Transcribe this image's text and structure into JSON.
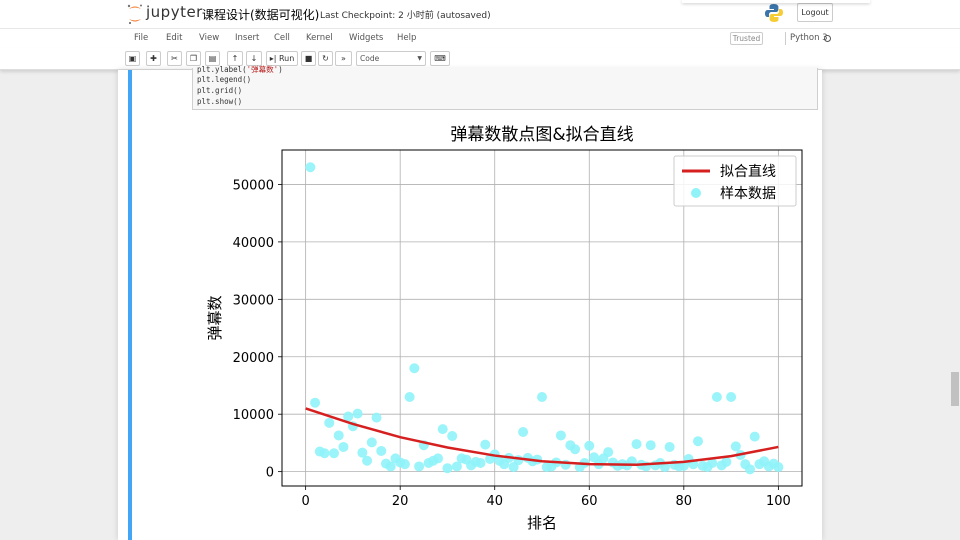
{
  "header": {
    "logo_text": "jupyter",
    "notebook_title": "课程设计(数据可视化)",
    "checkpoint": "Last Checkpoint: 2 小时前   (autosaved)",
    "logout_label": "Logout"
  },
  "menubar": {
    "items": [
      "File",
      "Edit",
      "View",
      "Insert",
      "Cell",
      "Kernel",
      "Widgets",
      "Help"
    ],
    "trusted_label": "Trusted",
    "kernel_name": "Python 3"
  },
  "toolbar": {
    "run_label": "Run",
    "cell_type": "Code"
  },
  "code": {
    "line1_prefix": "plt.ylabel(",
    "line1_str": "'弹幕数'",
    "line1_suffix": ")",
    "line2": "plt.legend()",
    "line3": "plt.grid()",
    "line4": "plt.show()"
  },
  "chart_data": {
    "type": "scatter",
    "title": "弹幕数散点图&拟合直线",
    "xlabel": "排名",
    "ylabel": "弹幕数",
    "xlim": [
      -5,
      105
    ],
    "ylim": [
      -2500,
      56000
    ],
    "xticks": [
      0,
      20,
      40,
      60,
      80,
      100
    ],
    "yticks": [
      0,
      10000,
      20000,
      30000,
      40000,
      50000
    ],
    "grid": true,
    "legend_position": "top-right",
    "series": [
      {
        "name": "拟合直线",
        "kind": "line",
        "color": "#d62020",
        "x": [
          0,
          10,
          20,
          30,
          40,
          50,
          60,
          70,
          80,
          90,
          100
        ],
        "y": [
          11000,
          8300,
          6000,
          4200,
          2800,
          1800,
          1300,
          1200,
          1700,
          2700,
          4300
        ]
      },
      {
        "name": "样本数据",
        "kind": "scatter",
        "color": "#8ff3f8",
        "x": [
          1,
          2,
          3,
          4,
          5,
          6,
          7,
          8,
          9,
          10,
          11,
          12,
          13,
          14,
          15,
          16,
          17,
          18,
          19,
          20,
          21,
          22,
          23,
          24,
          25,
          26,
          27,
          28,
          29,
          30,
          31,
          32,
          33,
          34,
          35,
          36,
          37,
          38,
          39,
          40,
          41,
          42,
          43,
          44,
          45,
          46,
          47,
          48,
          49,
          50,
          51,
          52,
          53,
          54,
          55,
          56,
          57,
          58,
          59,
          60,
          61,
          62,
          63,
          64,
          65,
          66,
          67,
          68,
          69,
          70,
          71,
          72,
          73,
          74,
          75,
          76,
          77,
          78,
          79,
          80,
          81,
          82,
          83,
          84,
          85,
          86,
          87,
          88,
          89,
          90,
          91,
          92,
          93,
          94,
          95,
          96,
          97,
          98,
          99,
          100
        ],
        "y": [
          53000,
          12000,
          3500,
          3200,
          8500,
          3200,
          6300,
          4300,
          9600,
          7900,
          10100,
          3300,
          1900,
          5100,
          9400,
          3600,
          1400,
          900,
          2300,
          1600,
          1300,
          13000,
          18000,
          900,
          4600,
          1500,
          1900,
          2300,
          7400,
          600,
          6200,
          900,
          2300,
          2100,
          1100,
          1700,
          1500,
          4700,
          2200,
          3000,
          1900,
          1300,
          2400,
          800,
          2000,
          6900,
          2400,
          1800,
          2100,
          13000,
          800,
          900,
          1600,
          6300,
          1200,
          4600,
          3900,
          800,
          1500,
          4500,
          2500,
          1300,
          2300,
          3400,
          1600,
          1000,
          1300,
          1100,
          1800,
          4800,
          1200,
          900,
          4600,
          1100,
          1500,
          800,
          4300,
          1200,
          900,
          1000,
          2200,
          1300,
          5300,
          1000,
          800,
          1500,
          13000,
          1100,
          1700,
          13000,
          4400,
          2900,
          1300,
          400,
          6100,
          1300,
          1800,
          900,
          1400,
          800
        ]
      }
    ]
  }
}
